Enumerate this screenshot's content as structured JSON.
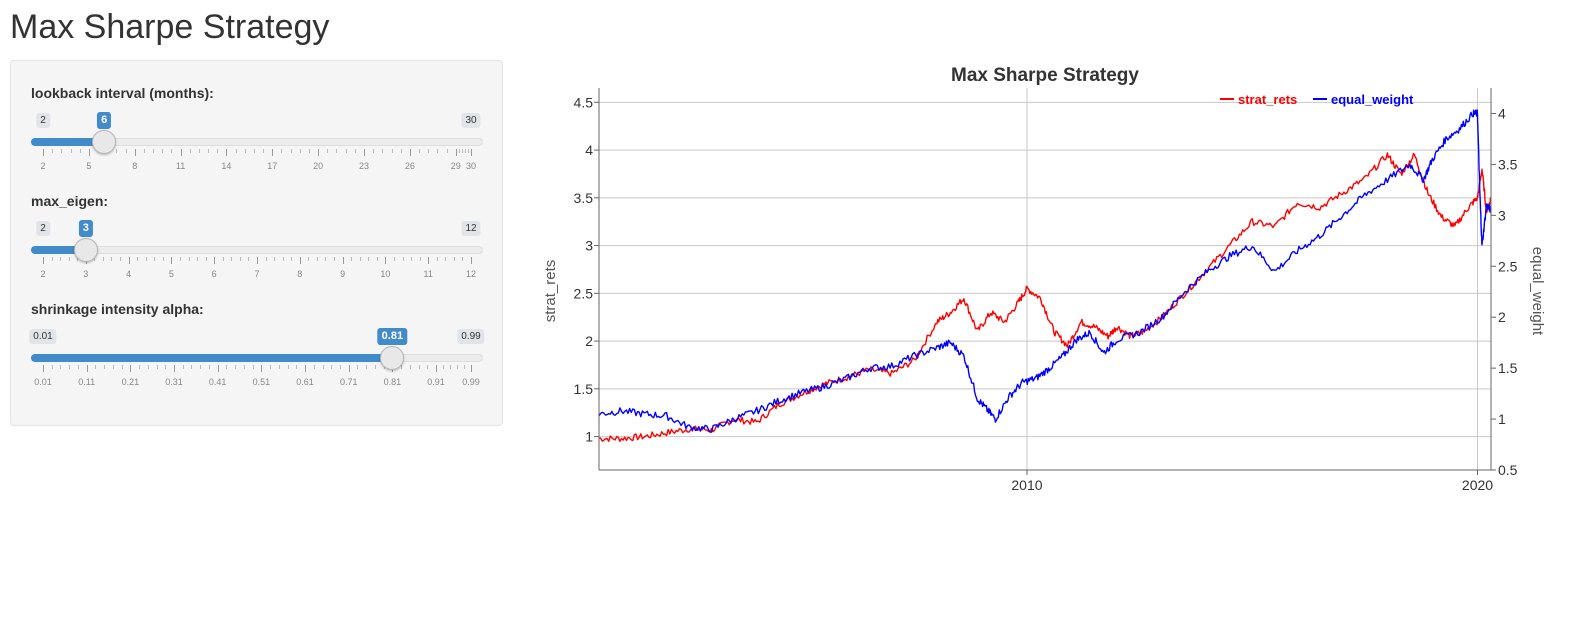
{
  "page_title": "Max Sharpe Strategy",
  "sliders": [
    {
      "label": "lookback interval (months):",
      "min": 2,
      "max": 30,
      "value": 6,
      "min_label": "2",
      "max_label": "30",
      "value_label": "6",
      "ticks": [
        "2",
        "5",
        "8",
        "11",
        "14",
        "17",
        "20",
        "23",
        "26",
        "29",
        "30"
      ]
    },
    {
      "label": "max_eigen:",
      "min": 2,
      "max": 12,
      "value": 3,
      "min_label": "2",
      "max_label": "12",
      "value_label": "3",
      "ticks": [
        "2",
        "3",
        "4",
        "5",
        "6",
        "7",
        "8",
        "9",
        "10",
        "11",
        "12"
      ]
    },
    {
      "label": "shrinkage intensity alpha:",
      "min": 0.01,
      "max": 0.99,
      "value": 0.81,
      "min_label": "0.01",
      "max_label": "0.99",
      "value_label": "0.81",
      "ticks": [
        "0.01",
        "0.11",
        "0.21",
        "0.31",
        "0.41",
        "0.51",
        "0.61",
        "0.71",
        "0.81",
        "0.91",
        "0.99"
      ]
    }
  ],
  "colors": {
    "accent": "#428bca",
    "strat_rets": "#ff0000",
    "equal_weight": "#0000ff"
  },
  "chart_data": {
    "type": "line",
    "title": "Max Sharpe Strategy",
    "xlabel": "",
    "ylabel": "strat_rets",
    "y2label": "equal_weight",
    "xlim": [
      2000.5,
      2020.3
    ],
    "ylim": [
      0.65,
      4.65
    ],
    "y2lim": [
      0.5,
      4.25
    ],
    "x_ticks": [
      "2010",
      "2020"
    ],
    "y_ticks": [
      "1",
      "1.5",
      "2",
      "2.5",
      "3",
      "3.5",
      "4",
      "4.5"
    ],
    "y2_ticks": [
      "0.5",
      "1",
      "1.5",
      "2",
      "2.5",
      "3",
      "3.5",
      "4"
    ],
    "legend": {
      "position": "top-right",
      "entries": [
        "strat_rets",
        "equal_weight"
      ]
    },
    "grid": true,
    "series": [
      {
        "name": "strat_rets",
        "axis": "left",
        "color": "#ff0000",
        "x": [
          2000.5,
          2001.0,
          2001.5,
          2002.0,
          2002.5,
          2003.0,
          2003.5,
          2004.0,
          2004.5,
          2005.0,
          2005.5,
          2006.0,
          2006.5,
          2007.0,
          2007.5,
          2008.0,
          2008.3,
          2008.6,
          2008.9,
          2009.2,
          2009.5,
          2009.8,
          2010.0,
          2010.3,
          2010.6,
          2010.9,
          2011.2,
          2011.5,
          2011.8,
          2012.0,
          2012.3,
          2012.6,
          2013.0,
          2013.5,
          2014.0,
          2014.5,
          2015.0,
          2015.5,
          2016.0,
          2016.5,
          2017.0,
          2017.5,
          2018.0,
          2018.3,
          2018.6,
          2018.9,
          2019.2,
          2019.5,
          2019.8,
          2020.0,
          2020.1,
          2020.2,
          2020.3
        ],
        "y": [
          0.98,
          0.98,
          1.0,
          1.04,
          1.08,
          1.07,
          1.18,
          1.15,
          1.34,
          1.45,
          1.55,
          1.62,
          1.7,
          1.66,
          1.8,
          2.2,
          2.3,
          2.45,
          2.1,
          2.3,
          2.2,
          2.4,
          2.55,
          2.45,
          2.1,
          1.95,
          2.2,
          2.15,
          2.05,
          2.15,
          2.05,
          2.1,
          2.25,
          2.5,
          2.75,
          3.0,
          3.25,
          3.2,
          3.45,
          3.4,
          3.55,
          3.7,
          3.95,
          3.75,
          3.95,
          3.55,
          3.3,
          3.2,
          3.4,
          3.5,
          3.8,
          3.35,
          3.5
        ]
      },
      {
        "name": "equal_weight",
        "axis": "right",
        "color": "#0000ff",
        "x": [
          2000.5,
          2001.0,
          2001.5,
          2002.0,
          2002.5,
          2003.0,
          2003.5,
          2004.0,
          2004.5,
          2005.0,
          2005.5,
          2006.0,
          2006.5,
          2007.0,
          2007.5,
          2008.0,
          2008.3,
          2008.6,
          2008.9,
          2009.1,
          2009.3,
          2009.6,
          2009.9,
          2010.2,
          2010.5,
          2010.8,
          2011.1,
          2011.4,
          2011.7,
          2012.0,
          2012.5,
          2013.0,
          2013.5,
          2014.0,
          2014.5,
          2015.0,
          2015.5,
          2016.0,
          2016.5,
          2017.0,
          2017.5,
          2018.0,
          2018.5,
          2018.8,
          2019.0,
          2019.3,
          2019.6,
          2019.9,
          2020.0,
          2020.05,
          2020.1,
          2020.2,
          2020.3
        ],
        "y": [
          1.05,
          1.08,
          1.05,
          1.03,
          0.92,
          0.9,
          1.0,
          1.08,
          1.18,
          1.26,
          1.32,
          1.4,
          1.5,
          1.52,
          1.62,
          1.7,
          1.75,
          1.62,
          1.2,
          1.1,
          1.0,
          1.22,
          1.36,
          1.4,
          1.5,
          1.62,
          1.78,
          1.85,
          1.65,
          1.78,
          1.85,
          2.0,
          2.25,
          2.45,
          2.6,
          2.7,
          2.45,
          2.65,
          2.8,
          3.0,
          3.2,
          3.35,
          3.5,
          3.35,
          3.55,
          3.75,
          3.85,
          4.0,
          4.0,
          3.25,
          2.7,
          3.1,
          3.05
        ]
      }
    ]
  }
}
